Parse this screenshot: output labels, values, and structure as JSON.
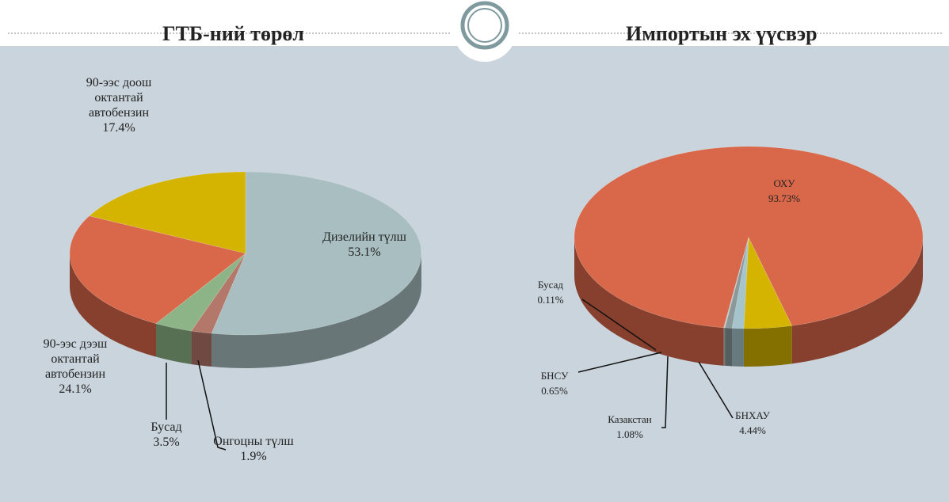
{
  "chart_data": [
    {
      "type": "pie",
      "title": "ГТБ-ний төрөл",
      "categories": [
        "Дизелийн түлш",
        "Онгоцны түлш",
        "Бусад",
        "90-ээс дээш октантай автобензин",
        "90-ээс доош октантай автобензин"
      ],
      "values": [
        53.1,
        1.9,
        3.5,
        24.1,
        17.4
      ],
      "value_labels": [
        "53.1%",
        "1.9%",
        "3.5%",
        "24.1%",
        "17.4%"
      ],
      "colors": [
        "#a8bec0",
        "#b4786a",
        "#8db487",
        "#d9684a",
        "#d4b400"
      ]
    },
    {
      "type": "pie",
      "title": "Импортын эх үүсвэр",
      "categories": [
        "ОХУ",
        "БНХАУ",
        "Казакстан",
        "БНСУ",
        "Бусад"
      ],
      "values": [
        93.73,
        4.44,
        1.08,
        0.65,
        0.11
      ],
      "value_labels": [
        "93.73%",
        "4.44%",
        "1.08%",
        "0.65%",
        "0.11%"
      ],
      "colors": [
        "#d9684a",
        "#d4b400",
        "#a6c4cc",
        "#8a9a9a",
        "#c4c4c4"
      ]
    }
  ]
}
